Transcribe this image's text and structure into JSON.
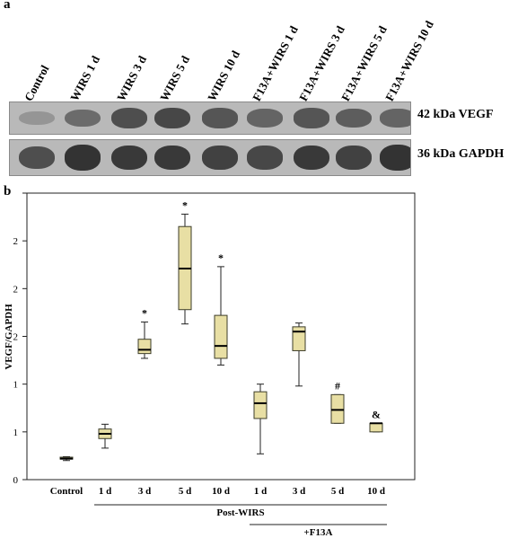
{
  "figure": {
    "panel_a_label": "a",
    "panel_b_label": "b"
  },
  "blot": {
    "lanes": [
      "Control",
      "WIRS 1 d",
      "WIRS 3 d",
      "WIRS 5 d",
      "WIRS 10 d",
      "F13A+WIRS 1 d",
      "F13A+WIRS 3 d",
      "F13A+WIRS 5 d",
      "F13A+WIRS 10 d"
    ],
    "vegf_label": "42 kDa VEGF",
    "gapdh_label": "36 kDa GAPDH",
    "vegf_intensity": [
      0.25,
      0.55,
      0.75,
      0.8,
      0.7,
      0.6,
      0.7,
      0.65,
      0.6
    ],
    "gapdh_intensity": [
      0.75,
      0.95,
      0.9,
      0.9,
      0.85,
      0.8,
      0.9,
      0.85,
      0.95
    ]
  },
  "chart_data": {
    "type": "box",
    "ylabel": "VEGF/GAPDH",
    "categories": [
      "Control",
      "1 d",
      "3 d",
      "5 d",
      "10 d",
      "1 d",
      "3 d",
      "5 d",
      "10 d"
    ],
    "ylim": [
      0,
      3
    ],
    "yticks": [
      0,
      0.5,
      1,
      1.5,
      2,
      2.5,
      3
    ],
    "ytick_labels": [
      "0",
      "1",
      "1",
      "2",
      "2",
      "2",
      ""
    ],
    "boxes": [
      {
        "whisker_low": 0.2,
        "q1": 0.215,
        "median": 0.22,
        "q3": 0.235,
        "whisker_high": 0.24,
        "annotation": ""
      },
      {
        "whisker_low": 0.33,
        "q1": 0.43,
        "median": 0.48,
        "q3": 0.53,
        "whisker_high": 0.58,
        "annotation": ""
      },
      {
        "whisker_low": 1.27,
        "q1": 1.32,
        "median": 1.36,
        "q3": 1.47,
        "whisker_high": 1.65,
        "annotation": "*"
      },
      {
        "whisker_low": 1.63,
        "q1": 1.78,
        "median": 2.21,
        "q3": 2.65,
        "whisker_high": 2.78,
        "annotation": "*"
      },
      {
        "whisker_low": 1.2,
        "q1": 1.27,
        "median": 1.4,
        "q3": 1.72,
        "whisker_high": 2.23,
        "annotation": "*"
      },
      {
        "whisker_low": 0.27,
        "q1": 0.64,
        "median": 0.8,
        "q3": 0.92,
        "whisker_high": 1.0,
        "annotation": ""
      },
      {
        "whisker_low": 0.98,
        "q1": 1.35,
        "median": 1.55,
        "q3": 1.6,
        "whisker_high": 1.64,
        "annotation": ""
      },
      {
        "whisker_low": 0.59,
        "q1": 0.59,
        "median": 0.73,
        "q3": 0.89,
        "whisker_high": 0.89,
        "annotation": "#"
      },
      {
        "whisker_low": 0.5,
        "q1": 0.5,
        "median": 0.59,
        "q3": 0.59,
        "whisker_high": 0.59,
        "annotation": "&"
      }
    ],
    "group_labels": [
      {
        "label": "Post-WIRS",
        "from": 1,
        "to": 8
      },
      {
        "label": "+F13A",
        "from": 5,
        "to": 8
      }
    ],
    "box_color": "#e8dfa4",
    "box_stroke": "#3d3d2a"
  }
}
